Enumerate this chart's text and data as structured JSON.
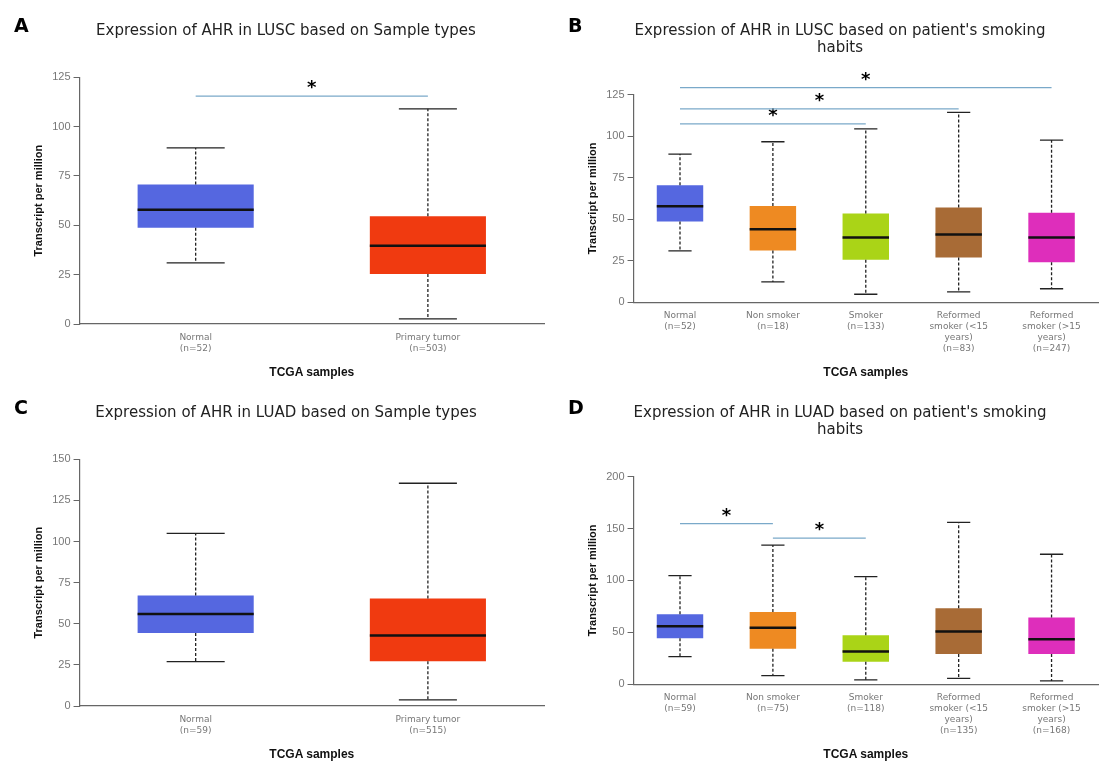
{
  "chart_data": [
    {
      "type": "box",
      "title": "Expression of AHR in LUSC based on Sample types",
      "xlabel": "TCGA samples",
      "ylabel": "Transcript per million",
      "categories": [
        "Normal\n(n=52)",
        "Primary tumor\n(n=503)"
      ],
      "colors": [
        "#5567e0",
        "#f03a10"
      ],
      "boxes": [
        {
          "low": 31,
          "q1": 48.7,
          "median": 57.9,
          "q3": 70.7,
          "high": 89.2
        },
        {
          "low": 2.6,
          "q1": 25.3,
          "median": 39.7,
          "q3": 54.6,
          "high": 109
        }
      ],
      "ylim": [
        0,
        125
      ],
      "yticks": [
        0,
        25,
        50,
        75,
        100,
        125
      ],
      "annotations": [
        "A",
        "*"
      ]
    },
    {
      "type": "box",
      "title": "Expression of AHR in LUSC based on patient's smoking habits",
      "xlabel": "TCGA samples",
      "ylabel": "Transcript per million",
      "categories": [
        "Normal\n(n=52)",
        "Non smoker\n(n=18)",
        "Smoker\n(n=133)",
        "Reformed\nsmoker (<15\nyears)\n(n=83)",
        "Reformed\nsmoker (>15\nyears)\n(n=247)"
      ],
      "colors": [
        "#5567e0",
        "#ee8a22",
        "#aad417",
        "#a86b36",
        "#de2ebb"
      ],
      "boxes": [
        {
          "low": 31,
          "q1": 48.7,
          "median": 57.8,
          "q3": 70.5,
          "high": 89.2
        },
        {
          "low": 12.3,
          "q1": 31.2,
          "median": 44,
          "q3": 58,
          "high": 96.6
        },
        {
          "low": 4.9,
          "q1": 25.6,
          "median": 39,
          "q3": 53.5,
          "high": 104.3
        },
        {
          "low": 6.3,
          "q1": 27,
          "median": 40.9,
          "q3": 57,
          "high": 114.2
        },
        {
          "low": 8.2,
          "q1": 24.1,
          "median": 39,
          "q3": 53.9,
          "high": 97.6
        }
      ],
      "ylim": [
        0,
        125
      ],
      "yticks": [
        0,
        25,
        50,
        75,
        100,
        125
      ],
      "annotations": [
        "B",
        "*",
        "*",
        "*"
      ]
    },
    {
      "type": "box",
      "title": "Expression of AHR in LUAD based on Sample types",
      "xlabel": "TCGA samples",
      "ylabel": "Transcript per million",
      "categories": [
        "Normal\n(n=59)",
        "Primary tumor\n(n=515)"
      ],
      "colors": [
        "#5567e0",
        "#f03a10"
      ],
      "boxes": [
        {
          "low": 27,
          "q1": 44.4,
          "median": 56,
          "q3": 67.1,
          "high": 104.9
        },
        {
          "low": 3.7,
          "q1": 27.2,
          "median": 42.8,
          "q3": 65.4,
          "high": 135.4
        }
      ],
      "ylim": [
        0,
        150
      ],
      "yticks": [
        0,
        25,
        50,
        75,
        100,
        125,
        150
      ],
      "annotations": [
        "C"
      ]
    },
    {
      "type": "box",
      "title": "Expression of AHR in LUAD based on patient's smoking habits",
      "xlabel": "TCGA samples",
      "ylabel": "Transcript per million",
      "categories": [
        "Normal\n(n=59)",
        "Non smoker\n(n=75)",
        "Smoker\n(n=118)",
        "Reformed\nsmoker (<15\nyears)\n(n=135)",
        "Reformed\nsmoker (>15\nyears)\n(n=168)"
      ],
      "colors": [
        "#5567e0",
        "#ee8a22",
        "#aad417",
        "#a86b36",
        "#de2ebb"
      ],
      "boxes": [
        {
          "low": 26.7,
          "q1": 44.4,
          "median": 55.9,
          "q3": 67.5,
          "high": 104.6
        },
        {
          "low": 8.5,
          "q1": 34.3,
          "median": 54.4,
          "q3": 69.6,
          "high": 134
        },
        {
          "low": 4.3,
          "q1": 21.9,
          "median": 31.6,
          "q3": 47.4,
          "high": 103.6
        },
        {
          "low": 5.8,
          "q1": 29.2,
          "median": 50.8,
          "q3": 73.3,
          "high": 155.9
        },
        {
          "low": 3.3,
          "q1": 29.2,
          "median": 43.5,
          "q3": 64.4,
          "high": 125.2
        }
      ],
      "ylim": [
        0,
        200
      ],
      "yticks": [
        0,
        50,
        100,
        150,
        200
      ],
      "annotations": [
        "D",
        "*",
        "*"
      ]
    }
  ]
}
